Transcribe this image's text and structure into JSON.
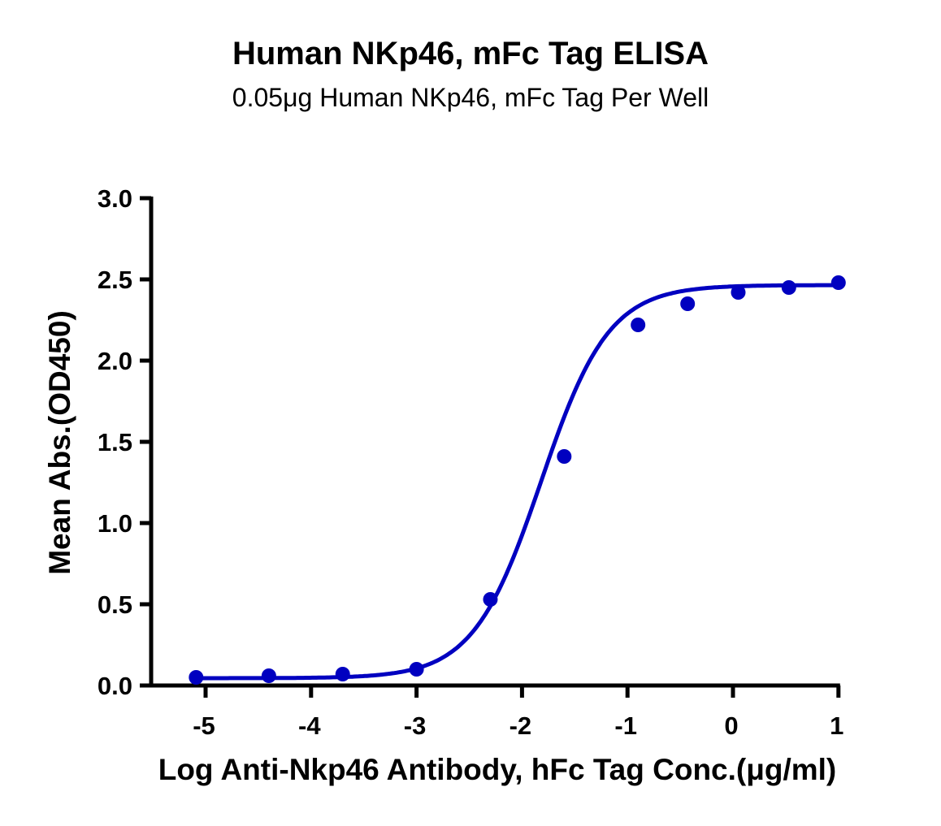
{
  "chart_data": {
    "type": "scatter",
    "title": "Human NKp46, mFc Tag ELISA",
    "subtitle": "0.05μg Human NKp46, mFc Tag Per Well",
    "xlabel": "Log Anti-Nkp46 Antibody, hFc Tag Conc.(μg/ml)",
    "ylabel": "Mean Abs.(OD450)",
    "xlim": [
      -5.1,
      1.0
    ],
    "ylim": [
      0,
      3.0
    ],
    "xticks": [
      "-5",
      "-4",
      "-3",
      "-2",
      "-1",
      "0",
      "1"
    ],
    "yticks": [
      "0.0",
      "0.5",
      "1.0",
      "1.5",
      "2.0",
      "2.5",
      "3.0"
    ],
    "grid": false,
    "legend": null,
    "series": [
      {
        "name": "Mean Abs.(OD450)",
        "color": "#0000c0",
        "fit": "4PL sigmoidal",
        "x": [
          -5.09,
          -4.4,
          -3.7,
          -3.0,
          -2.3,
          -1.6,
          -0.9,
          -0.43,
          0.05,
          0.53,
          1.0
        ],
        "y": [
          0.05,
          0.06,
          0.07,
          0.1,
          0.53,
          1.41,
          2.22,
          2.35,
          2.42,
          2.45,
          2.48
        ]
      }
    ]
  }
}
